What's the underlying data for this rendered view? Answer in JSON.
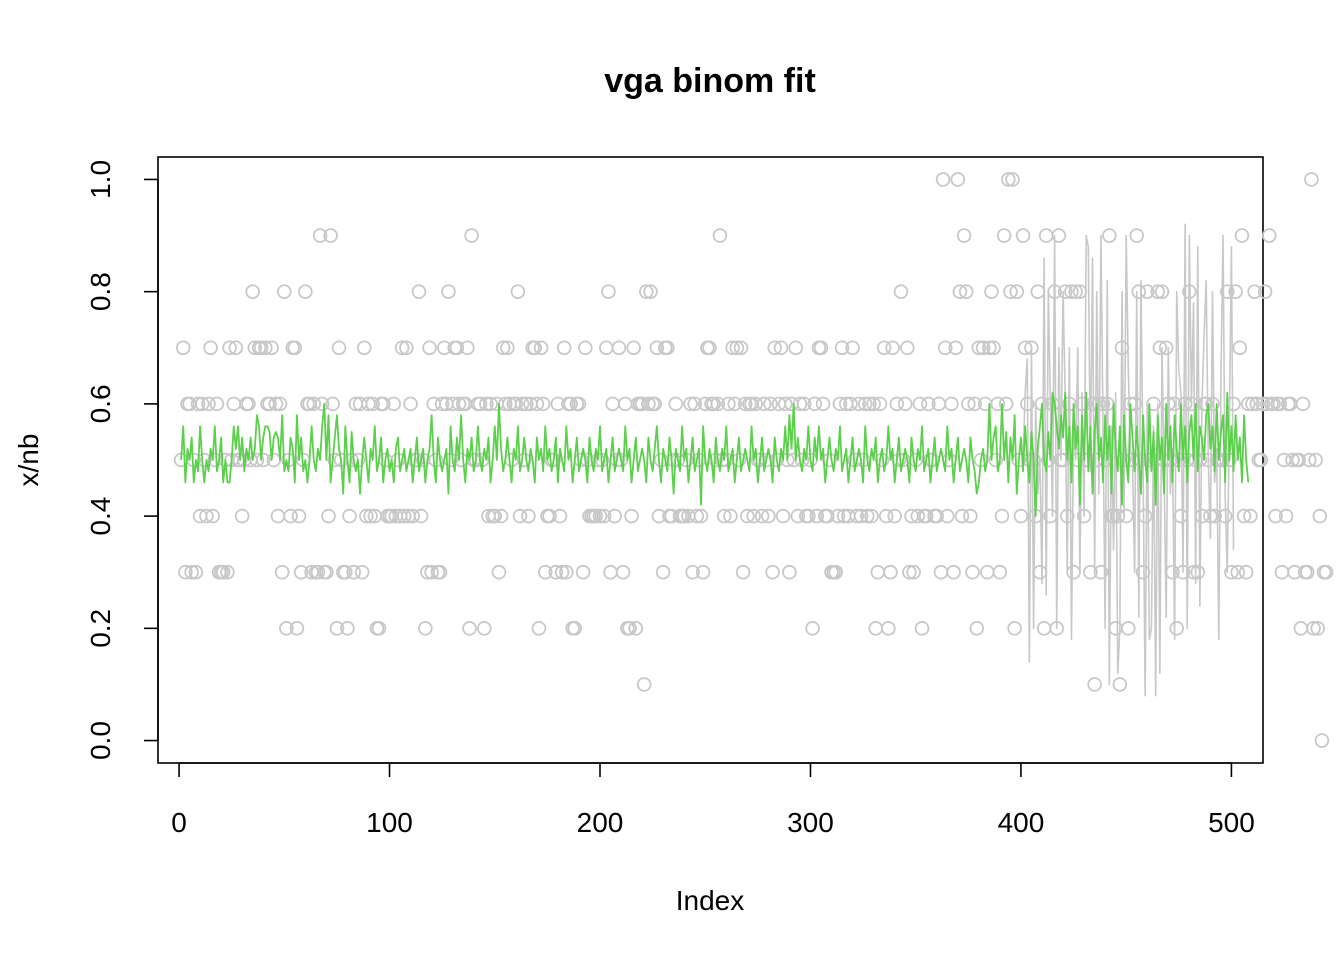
{
  "chart_data": {
    "type": "scatter",
    "title": "vga binom fit",
    "xlabel": "Index",
    "ylabel": "x/nb",
    "xlim": [
      -10,
      515
    ],
    "ylim": [
      -0.04,
      1.04
    ],
    "xticks": [
      0,
      100,
      200,
      300,
      400,
      500
    ],
    "xtick_labels": [
      "0",
      "100",
      "200",
      "300",
      "400",
      "500"
    ],
    "yticks": [
      0.0,
      0.2,
      0.4,
      0.6,
      0.8,
      1.0
    ],
    "ytick_labels": [
      "0.0",
      "0.2",
      "0.4",
      "0.6",
      "0.8",
      "1.0"
    ],
    "grid": false,
    "legend": "none",
    "n_points": 500,
    "x_start": 1,
    "x_step": 1,
    "series": [
      {
        "role": "observed",
        "mark": "open-circle",
        "color": "#c8c8c8",
        "y": [
          0.5,
          0.7,
          0.3,
          0.6,
          0.6,
          0.3,
          0.5,
          0.3,
          0.6,
          0.4,
          0.6,
          0.5,
          0.4,
          0.6,
          0.7,
          0.4,
          0.5,
          0.6,
          0.3,
          0.3,
          0.3,
          0.5,
          0.3,
          0.7,
          0.5,
          0.6,
          0.7,
          0.5,
          0.5,
          0.4,
          0.5,
          0.6,
          0.6,
          0.5,
          0.8,
          0.7,
          0.5,
          0.7,
          0.7,
          0.5,
          0.7,
          0.6,
          0.6,
          0.7,
          0.5,
          0.6,
          0.4,
          0.6,
          0.3,
          0.8,
          0.2,
          0.5,
          0.4,
          0.7,
          0.7,
          0.2,
          0.4,
          0.3,
          0.5,
          0.8,
          0.6,
          0.6,
          0.3,
          0.6,
          0.3,
          0.3,
          0.9,
          0.6,
          0.3,
          0.3,
          0.4,
          0.9,
          0.6,
          0.5,
          0.2,
          0.7,
          0.5,
          0.3,
          0.3,
          0.2,
          0.4,
          0.5,
          0.3,
          0.6,
          0.5,
          0.6,
          0.3,
          0.7,
          0.4,
          0.6,
          0.4,
          0.6,
          0.4,
          0.2,
          0.2,
          0.6,
          0.6,
          0.5,
          0.4,
          0.4,
          0.4,
          0.6,
          0.4,
          0.5,
          0.4,
          0.7,
          0.4,
          0.7,
          0.4,
          0.6,
          0.4,
          0.5,
          0.5,
          0.8,
          0.4,
          0.5,
          0.2,
          0.3,
          0.7,
          0.3,
          0.6,
          0.5,
          0.3,
          0.3,
          0.6,
          0.7,
          0.6,
          0.8,
          0.5,
          0.6,
          0.7,
          0.7,
          0.6,
          0.5,
          0.6,
          0.6,
          0.7,
          0.2,
          0.9,
          0.5,
          0.5,
          0.6,
          0.6,
          0.5,
          0.2,
          0.6,
          0.4,
          0.6,
          0.4,
          0.4,
          0.6,
          0.3,
          0.4,
          0.7,
          0.6,
          0.7,
          0.6,
          0.5,
          0.6,
          0.6,
          0.8,
          0.4,
          0.6,
          0.5,
          0.6,
          0.4,
          0.6,
          0.7,
          0.7,
          0.6,
          0.2,
          0.7,
          0.6,
          0.3,
          0.4,
          0.4,
          0.5,
          0.5,
          0.3,
          0.6,
          0.4,
          0.3,
          0.7,
          0.3,
          0.6,
          0.6,
          0.2,
          0.2,
          0.6,
          0.6,
          0.5,
          0.3,
          0.7,
          0.5,
          0.4,
          0.4,
          0.4,
          0.4,
          0.5,
          0.4,
          0.5,
          0.4,
          0.7,
          0.8,
          0.3,
          0.6,
          0.4,
          0.5,
          0.7,
          0.5,
          0.3,
          0.6,
          0.2,
          0.2,
          0.4,
          0.7,
          0.2,
          0.6,
          0.6,
          0.6,
          0.1,
          0.8,
          0.6,
          0.8,
          0.6,
          0.6,
          0.7,
          0.4,
          0.5,
          0.3,
          0.7,
          0.7,
          0.4,
          0.4,
          0.5,
          0.6,
          0.5,
          0.4,
          0.4,
          0.4,
          0.5,
          0.4,
          0.6,
          0.3,
          0.6,
          0.4,
          0.5,
          0.4,
          0.3,
          0.6,
          0.7,
          0.7,
          0.6,
          0.6,
          0.5,
          0.6,
          0.9,
          0.5,
          0.4,
          0.5,
          0.6,
          0.4,
          0.7,
          0.6,
          0.7,
          0.5,
          0.7,
          0.3,
          0.6,
          0.4,
          0.6,
          0.6,
          0.4,
          0.6,
          0.5,
          0.5,
          0.4,
          0.6,
          0.5,
          0.4,
          0.6,
          0.3,
          0.7,
          0.5,
          0.6,
          0.7,
          0.4,
          0.6,
          0.5,
          0.3,
          0.6,
          0.5,
          0.7,
          0.4,
          0.6,
          0.5,
          0.6,
          0.4,
          0.4,
          0.5,
          0.2,
          0.6,
          0.4,
          0.7,
          0.7,
          0.6,
          0.4,
          0.4,
          0.5,
          0.3,
          0.3,
          0.3,
          0.4,
          0.6,
          0.7,
          0.4,
          0.6,
          0.4,
          0.6,
          0.7,
          0.5,
          0.4,
          0.6,
          0.4,
          0.5,
          0.6,
          0.4,
          0.6,
          0.4,
          0.6,
          0.2,
          0.3,
          0.6,
          0.5,
          0.7,
          0.4,
          0.2,
          0.3,
          0.7,
          0.4,
          0.6,
          0.5,
          0.8,
          0.5,
          0.6,
          0.7,
          0.3,
          0.4,
          0.3,
          0.5,
          0.4,
          0.6,
          0.2,
          0.4,
          0.4,
          0.6,
          0.5,
          0.5,
          0.4,
          0.4,
          0.6,
          0.3,
          1.0,
          0.7,
          0.4,
          0.5,
          0.6,
          0.3,
          0.7,
          1.0,
          0.8,
          0.4,
          0.9,
          0.8,
          0.6,
          0.4,
          0.3,
          0.6,
          0.2,
          0.7,
          0.5,
          0.7,
          0.6,
          0.3,
          0.7,
          0.8,
          0.7,
          0.5,
          0.6,
          0.3,
          0.4,
          0.9,
          0.6,
          1.0,
          0.8,
          1.0,
          0.2,
          0.8,
          0.5,
          0.4,
          0.9,
          0.7,
          0.6,
          0.5,
          0.7,
          0.5,
          0.4,
          0.8,
          0.3,
          0.6,
          0.2,
          0.9,
          0.5,
          0.4,
          0.6,
          0.8,
          0.2,
          0.9,
          0.5,
          0.5,
          0.8,
          0.4,
          0.6,
          0.8,
          0.3,
          0.8,
          0.5,
          0.8,
          0.6,
          0.4,
          0.5,
          0.5,
          0.3,
          0.6,
          0.1,
          0.5,
          0.6,
          0.3,
          0.6,
          0.5,
          0.6,
          0.9,
          0.4,
          0.4,
          0.2,
          0.4,
          0.1,
          0.7,
          0.5,
          0.4,
          0.2,
          0.6,
          0.5,
          0.6,
          0.9,
          0.8,
          0.5,
          0.3,
          0.4,
          0.8,
          0.5,
          0.5,
          0.6,
          0.5,
          0.8,
          0.7,
          0.8,
          0.5,
          0.7,
          0.6,
          0.5,
          0.3,
          0.6,
          0.2,
          0.5,
          0.4,
          0.3,
          0.6,
          0.5,
          0.8,
          0.6,
          0.3,
          0.5,
          0.3,
          0.5,
          0.4,
          0.6,
          0.6,
          0.5,
          0.4,
          0.6,
          0.4,
          0.5,
          0.5,
          0.5,
          0.5,
          0.4,
          0.8,
          0.5,
          0.3,
          0.6,
          0.8,
          0.3,
          0.7,
          0.9,
          0.4,
          0.3,
          0.6,
          0.4,
          0.6,
          0.8,
          0.6,
          0.5,
          0.5,
          0.6,
          0.8,
          0.6,
          0.9,
          0.6,
          0.6,
          0.4,
          0.6,
          0.6,
          0.3,
          0.5,
          0.4,
          0.6,
          0.6,
          0.5,
          0.3,
          0.5,
          0.5,
          0.2,
          0.6,
          0.3,
          0.3,
          0.5,
          1.0,
          0.2,
          0.5,
          0.2,
          0.4,
          0.0,
          0.3,
          0.3
        ]
      },
      {
        "role": "fitted",
        "mark": "line",
        "color": "#5cd04c",
        "y": [
          0.5,
          0.56,
          0.46,
          0.52,
          0.5,
          0.54,
          0.46,
          0.5,
          0.48,
          0.56,
          0.5,
          0.46,
          0.5,
          0.48,
          0.52,
          0.5,
          0.56,
          0.48,
          0.5,
          0.54,
          0.46,
          0.5,
          0.46,
          0.46,
          0.5,
          0.56,
          0.52,
          0.56,
          0.5,
          0.54,
          0.48,
          0.52,
          0.5,
          0.54,
          0.5,
          0.52,
          0.58,
          0.56,
          0.5,
          0.54,
          0.56,
          0.56,
          0.55,
          0.5,
          0.54,
          0.55,
          0.54,
          0.5,
          0.58,
          0.48,
          0.5,
          0.48,
          0.54,
          0.52,
          0.46,
          0.58,
          0.5,
          0.54,
          0.48,
          0.5,
          0.46,
          0.5,
          0.56,
          0.5,
          0.48,
          0.52,
          0.5,
          0.56,
          0.6,
          0.5,
          0.58,
          0.46,
          0.5,
          0.54,
          0.58,
          0.52,
          0.5,
          0.44,
          0.56,
          0.5,
          0.46,
          0.55,
          0.5,
          0.48,
          0.5,
          0.44,
          0.5,
          0.54,
          0.5,
          0.46,
          0.52,
          0.5,
          0.56,
          0.48,
          0.5,
          0.54,
          0.46,
          0.5,
          0.52,
          0.48,
          0.5,
          0.46,
          0.52,
          0.54,
          0.48,
          0.5,
          0.52,
          0.48,
          0.5,
          0.52,
          0.46,
          0.5,
          0.54,
          0.48,
          0.5,
          0.52,
          0.46,
          0.5,
          0.52,
          0.58,
          0.5,
          0.46,
          0.54,
          0.5,
          0.48,
          0.5,
          0.52,
          0.44,
          0.56,
          0.5,
          0.48,
          0.54,
          0.5,
          0.58,
          0.5,
          0.46,
          0.52,
          0.5,
          0.54,
          0.48,
          0.5,
          0.56,
          0.5,
          0.48,
          0.52,
          0.5,
          0.54,
          0.46,
          0.5,
          0.56,
          0.5,
          0.6,
          0.52,
          0.48,
          0.5,
          0.54,
          0.5,
          0.46,
          0.52,
          0.5,
          0.56,
          0.48,
          0.5,
          0.54,
          0.5,
          0.48,
          0.52,
          0.5,
          0.46,
          0.54,
          0.5,
          0.52,
          0.48,
          0.56,
          0.5,
          0.52,
          0.48,
          0.5,
          0.54,
          0.46,
          0.52,
          0.5,
          0.48,
          0.56,
          0.5,
          0.52,
          0.46,
          0.5,
          0.54,
          0.48,
          0.5,
          0.52,
          0.5,
          0.46,
          0.54,
          0.5,
          0.48,
          0.52,
          0.5,
          0.56,
          0.48,
          0.5,
          0.52,
          0.46,
          0.5,
          0.54,
          0.48,
          0.5,
          0.52,
          0.5,
          0.48,
          0.56,
          0.5,
          0.52,
          0.46,
          0.5,
          0.54,
          0.48,
          0.5,
          0.52,
          0.5,
          0.46,
          0.54,
          0.5,
          0.48,
          0.52,
          0.56,
          0.5,
          0.46,
          0.52,
          0.5,
          0.48,
          0.54,
          0.5,
          0.44,
          0.52,
          0.5,
          0.48,
          0.56,
          0.5,
          0.52,
          0.46,
          0.5,
          0.54,
          0.48,
          0.5,
          0.52,
          0.42,
          0.56,
          0.5,
          0.48,
          0.52,
          0.5,
          0.46,
          0.54,
          0.5,
          0.48,
          0.52,
          0.5,
          0.56,
          0.48,
          0.5,
          0.52,
          0.46,
          0.5,
          0.54,
          0.48,
          0.5,
          0.52,
          0.5,
          0.48,
          0.56,
          0.5,
          0.52,
          0.46,
          0.5,
          0.54,
          0.48,
          0.5,
          0.52,
          0.5,
          0.46,
          0.54,
          0.5,
          0.48,
          0.52,
          0.5,
          0.56,
          0.5,
          0.58,
          0.52,
          0.6,
          0.5,
          0.54,
          0.5,
          0.48,
          0.52,
          0.5,
          0.56,
          0.5,
          0.48,
          0.54,
          0.5,
          0.56,
          0.5,
          0.52,
          0.46,
          0.5,
          0.54,
          0.5,
          0.48,
          0.52,
          0.5,
          0.56,
          0.48,
          0.5,
          0.52,
          0.46,
          0.5,
          0.54,
          0.48,
          0.5,
          0.52,
          0.5,
          0.46,
          0.56,
          0.5,
          0.48,
          0.52,
          0.5,
          0.54,
          0.46,
          0.5,
          0.52,
          0.48,
          0.5,
          0.56,
          0.5,
          0.52,
          0.46,
          0.5,
          0.54,
          0.48,
          0.5,
          0.52,
          0.5,
          0.46,
          0.54,
          0.5,
          0.48,
          0.52,
          0.5,
          0.56,
          0.48,
          0.5,
          0.52,
          0.46,
          0.5,
          0.54,
          0.48,
          0.5,
          0.52,
          0.5,
          0.48,
          0.56,
          0.5,
          0.52,
          0.46,
          0.5,
          0.54,
          0.48,
          0.5,
          0.52,
          0.5,
          0.46,
          0.54,
          0.5,
          0.48,
          0.44,
          0.46,
          0.5,
          0.52,
          0.48,
          0.5,
          0.6,
          0.5,
          0.54,
          0.56,
          0.48,
          0.5,
          0.6,
          0.5,
          0.55,
          0.46,
          0.54,
          0.5,
          0.58,
          0.44,
          0.5,
          0.54,
          0.48,
          0.56,
          0.5,
          0.46,
          0.55,
          0.5,
          0.4,
          0.52,
          0.56,
          0.6,
          0.5,
          0.48,
          0.55,
          0.5,
          0.62,
          0.6,
          0.56,
          0.52,
          0.58,
          0.54,
          0.62,
          0.5,
          0.56,
          0.46,
          0.6,
          0.52,
          0.56,
          0.42,
          0.58,
          0.5,
          0.62,
          0.48,
          0.56,
          0.44,
          0.55,
          0.6,
          0.5,
          0.54,
          0.46,
          0.58,
          0.5,
          0.56,
          0.44,
          0.6,
          0.52,
          0.48,
          0.56,
          0.42,
          0.58,
          0.5,
          0.46,
          0.6,
          0.54,
          0.48,
          0.56,
          0.5,
          0.44,
          0.58,
          0.5,
          0.46,
          0.6,
          0.48,
          0.55,
          0.42,
          0.58,
          0.5,
          0.54,
          0.44,
          0.6,
          0.5,
          0.56,
          0.46,
          0.58,
          0.52,
          0.48,
          0.6,
          0.5,
          0.56,
          0.46,
          0.55,
          0.58,
          0.5,
          0.6,
          0.48,
          0.56,
          0.54,
          0.5,
          0.58,
          0.6,
          0.52,
          0.56,
          0.48,
          0.6,
          0.5,
          0.55,
          0.58,
          0.46,
          0.62,
          0.5,
          0.56,
          0.48,
          0.58,
          0.5,
          0.54,
          0.46,
          0.58,
          0.5,
          0.46
        ]
      },
      {
        "role": "observed-late",
        "mark": "line",
        "color": "#c8c8c8",
        "x_start": 401,
        "y": [
          0.5,
          0.62,
          0.68,
          0.14,
          0.7,
          0.2,
          0.6,
          0.44,
          0.5,
          0.28,
          0.86,
          0.26,
          0.8,
          0.6,
          0.4,
          0.9,
          0.2,
          0.7,
          0.5,
          0.8,
          0.62,
          0.3,
          0.7,
          0.18,
          0.56,
          0.5,
          0.7,
          0.3,
          0.62,
          0.4,
          0.9,
          0.88,
          0.48,
          0.86,
          0.3,
          0.8,
          0.44,
          0.9,
          0.56,
          0.2,
          0.82,
          0.1,
          0.56,
          0.34,
          0.62,
          0.12,
          0.2,
          0.8,
          0.4,
          0.9,
          0.66,
          0.52,
          0.5,
          0.3,
          0.8,
          0.22,
          0.82,
          0.5,
          0.08,
          0.6,
          0.18,
          0.2,
          0.56,
          0.08,
          0.6,
          0.12,
          0.7,
          0.48,
          0.22,
          0.7,
          0.44,
          0.52,
          0.18,
          0.8,
          0.66,
          0.62,
          0.3,
          0.92,
          0.2,
          0.9,
          0.6,
          0.78,
          0.28,
          0.88,
          0.24,
          0.6,
          0.72,
          0.82,
          0.5,
          0.36,
          0.8,
          0.46,
          0.52,
          0.18,
          0.64,
          0.9,
          0.44,
          0.3,
          0.56,
          0.88,
          0.34
        ]
      }
    ]
  }
}
